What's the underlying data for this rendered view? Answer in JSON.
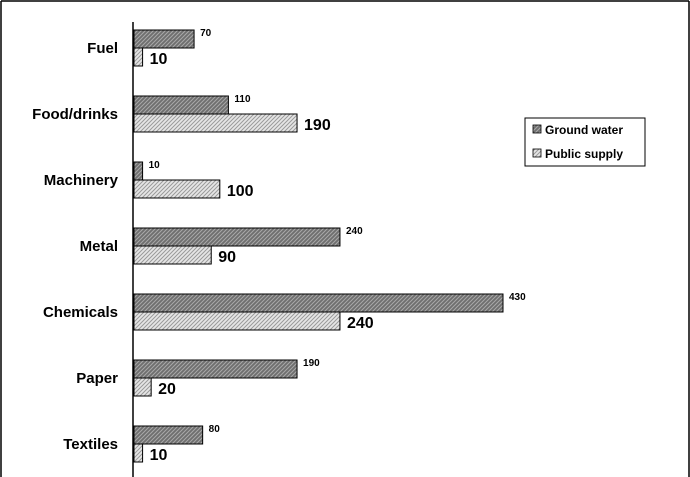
{
  "chart_data": {
    "type": "bar",
    "orientation": "horizontal",
    "categories": [
      "Fuel",
      "Food/drinks",
      "Machinery",
      "Metal",
      "Chemicals",
      "Paper",
      "Textiles"
    ],
    "series": [
      {
        "name": "Ground water",
        "values": [
          70,
          110,
          10,
          240,
          430,
          190,
          80
        ],
        "color": "#808080",
        "pattern": "dark-hatch"
      },
      {
        "name": "Public supply",
        "values": [
          10,
          190,
          100,
          90,
          240,
          20,
          10
        ],
        "color": "#d0d0d0",
        "pattern": "light-hatch"
      }
    ],
    "title": "",
    "xlabel": "",
    "ylabel": "",
    "xlim": [
      0,
      450
    ],
    "grid": false,
    "legend": "right"
  }
}
